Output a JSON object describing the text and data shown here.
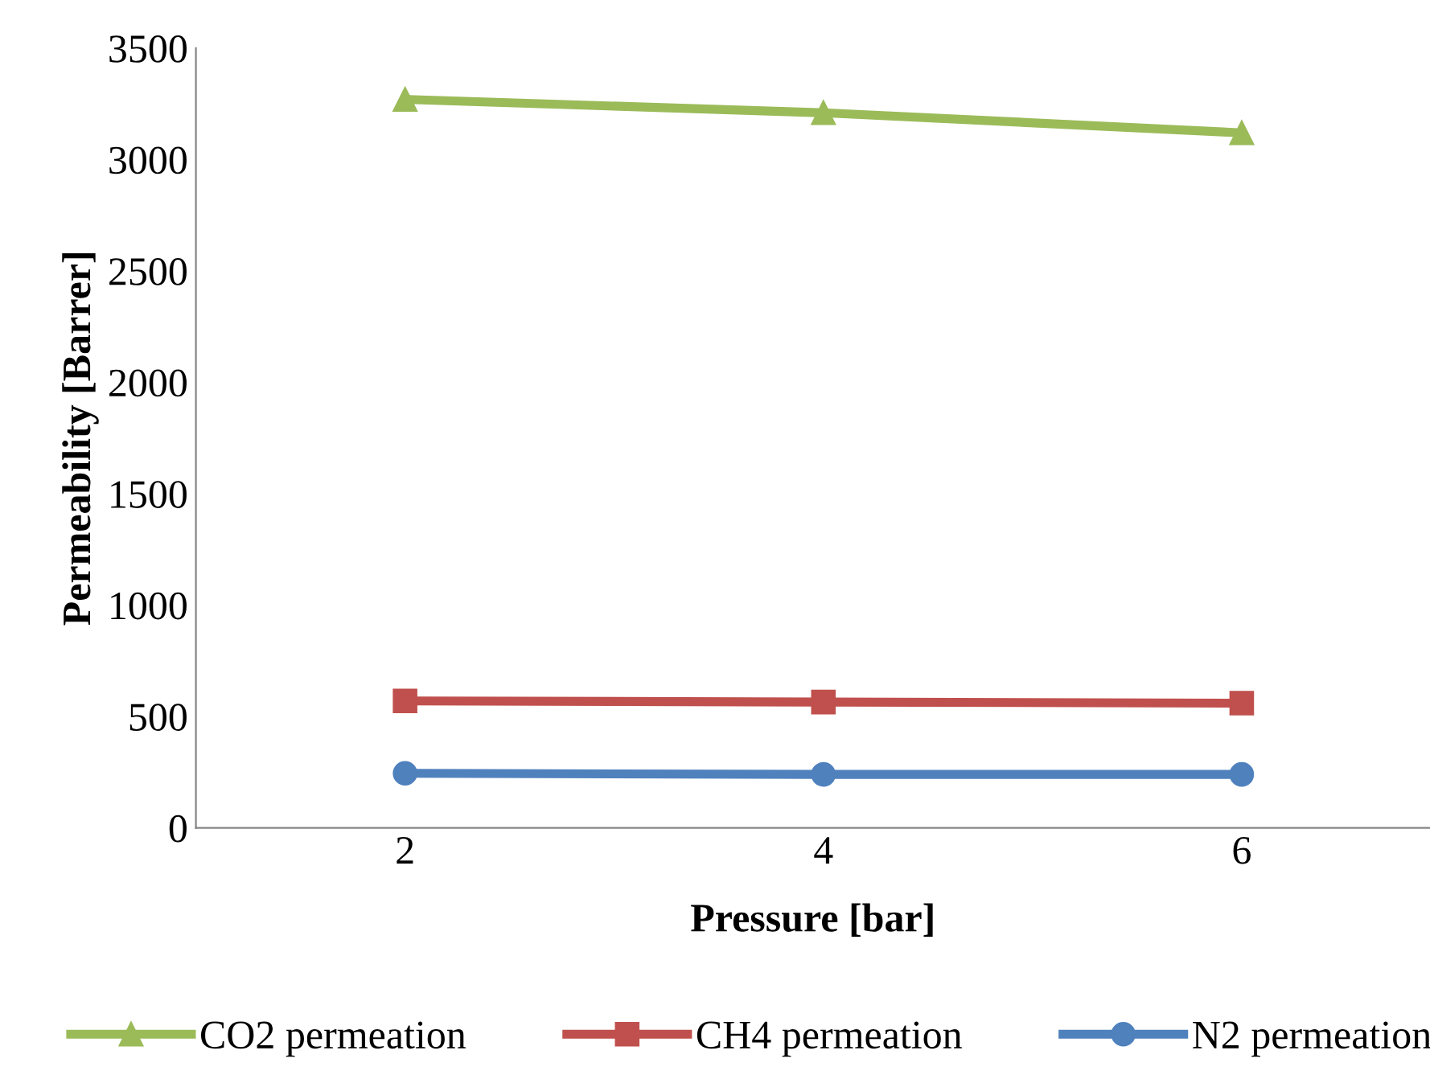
{
  "chart_data": {
    "type": "line",
    "xlabel": "Pressure [bar]",
    "ylabel": "Permeability [Barrer]",
    "categories": [
      "2",
      "4",
      "6"
    ],
    "series": [
      {
        "name": "CO2 permeation",
        "color": "#9bbb59",
        "marker": "triangle",
        "values": [
          3270,
          3210,
          3120
        ]
      },
      {
        "name": "CH4 permeation",
        "color": "#c0504d",
        "marker": "square",
        "values": [
          570,
          565,
          560
        ]
      },
      {
        "name": "N2 permeation",
        "color": "#4f81bd",
        "marker": "circle",
        "values": [
          245,
          240,
          240
        ]
      }
    ],
    "ylim": [
      0,
      3500
    ],
    "yticks": [
      0,
      500,
      1000,
      1500,
      2000,
      2500,
      3000,
      3500
    ],
    "grid": false,
    "legend": "bottom",
    "line_style": "solid"
  }
}
